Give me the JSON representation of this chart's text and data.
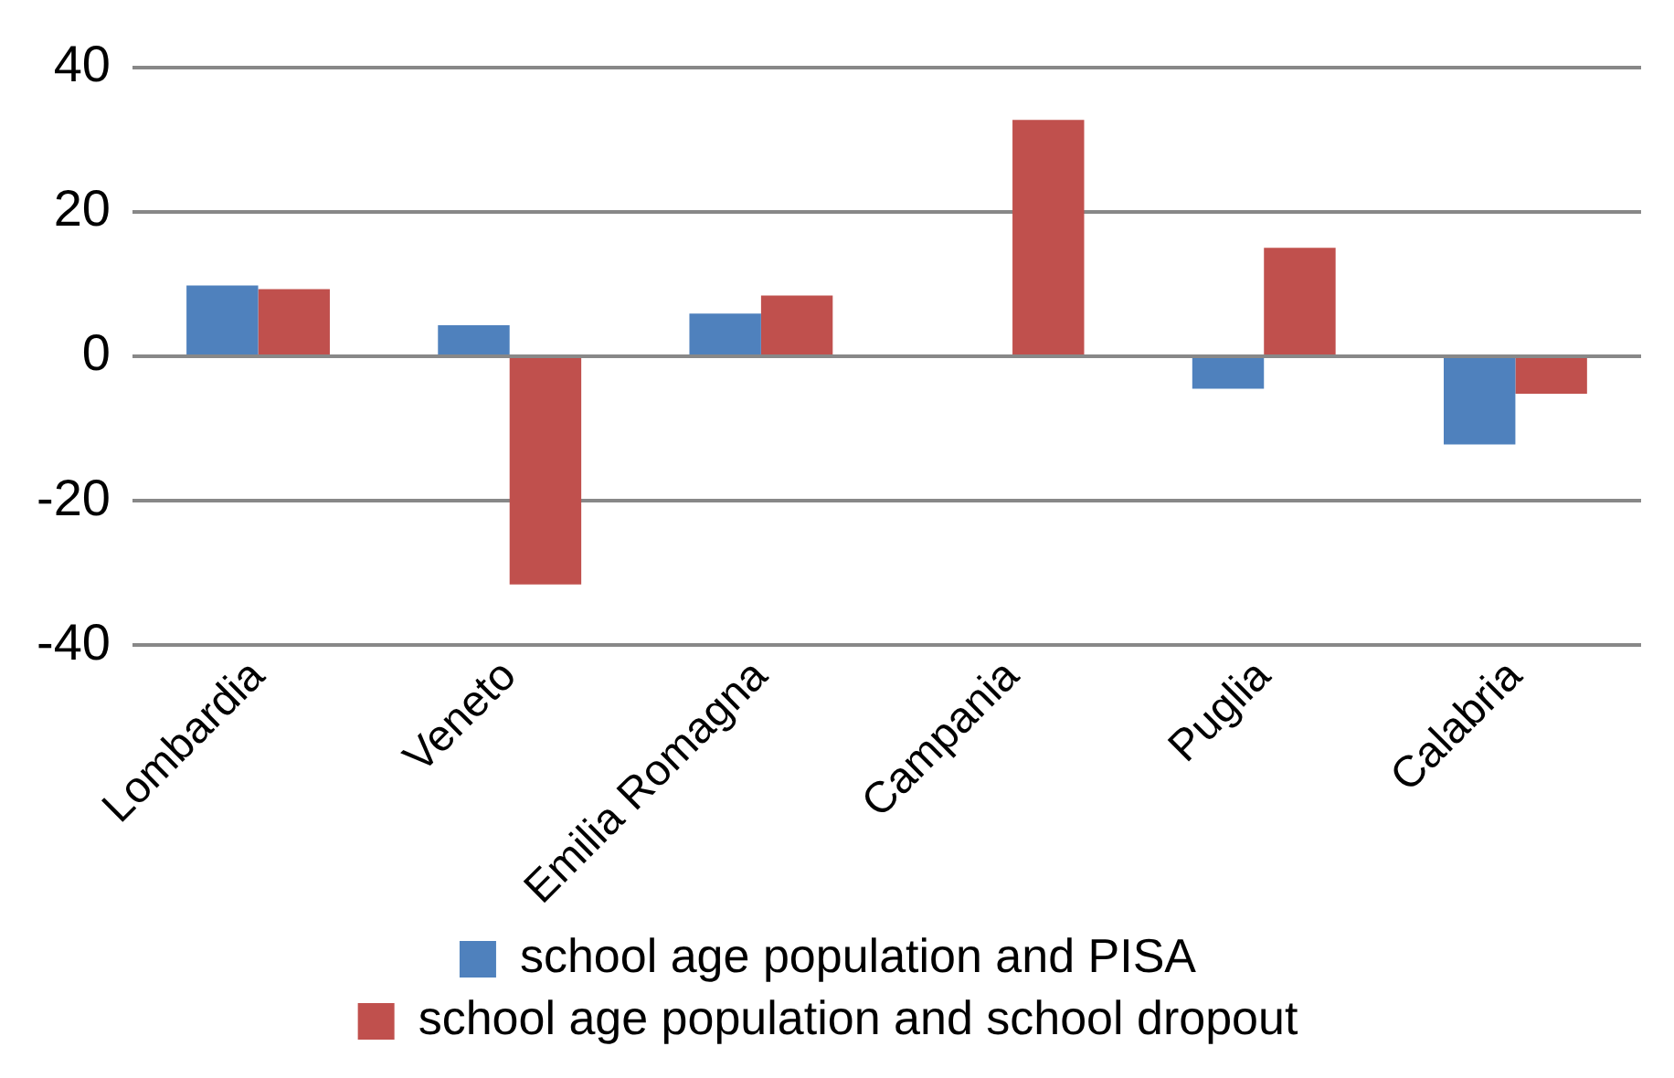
{
  "chart_data": {
    "type": "bar",
    "categories": [
      "Lombardia",
      "Veneto",
      "Emilia Romagna",
      "Campania",
      "Puglia",
      "Calabria"
    ],
    "series": [
      {
        "name": "school age population and PISA",
        "color": "#4f81bd",
        "values": [
          9.8,
          4.3,
          5.9,
          0,
          -4.5,
          -12.2
        ]
      },
      {
        "name": "school age population and school dropout",
        "color": "#c0504d",
        "values": [
          9.3,
          -31.6,
          8.4,
          32.7,
          15,
          -5.2
        ]
      }
    ],
    "ylim": [
      -40,
      40
    ],
    "yticks": [
      -40,
      -20,
      0,
      20,
      40
    ],
    "grid": "y",
    "legend": "bottom"
  }
}
